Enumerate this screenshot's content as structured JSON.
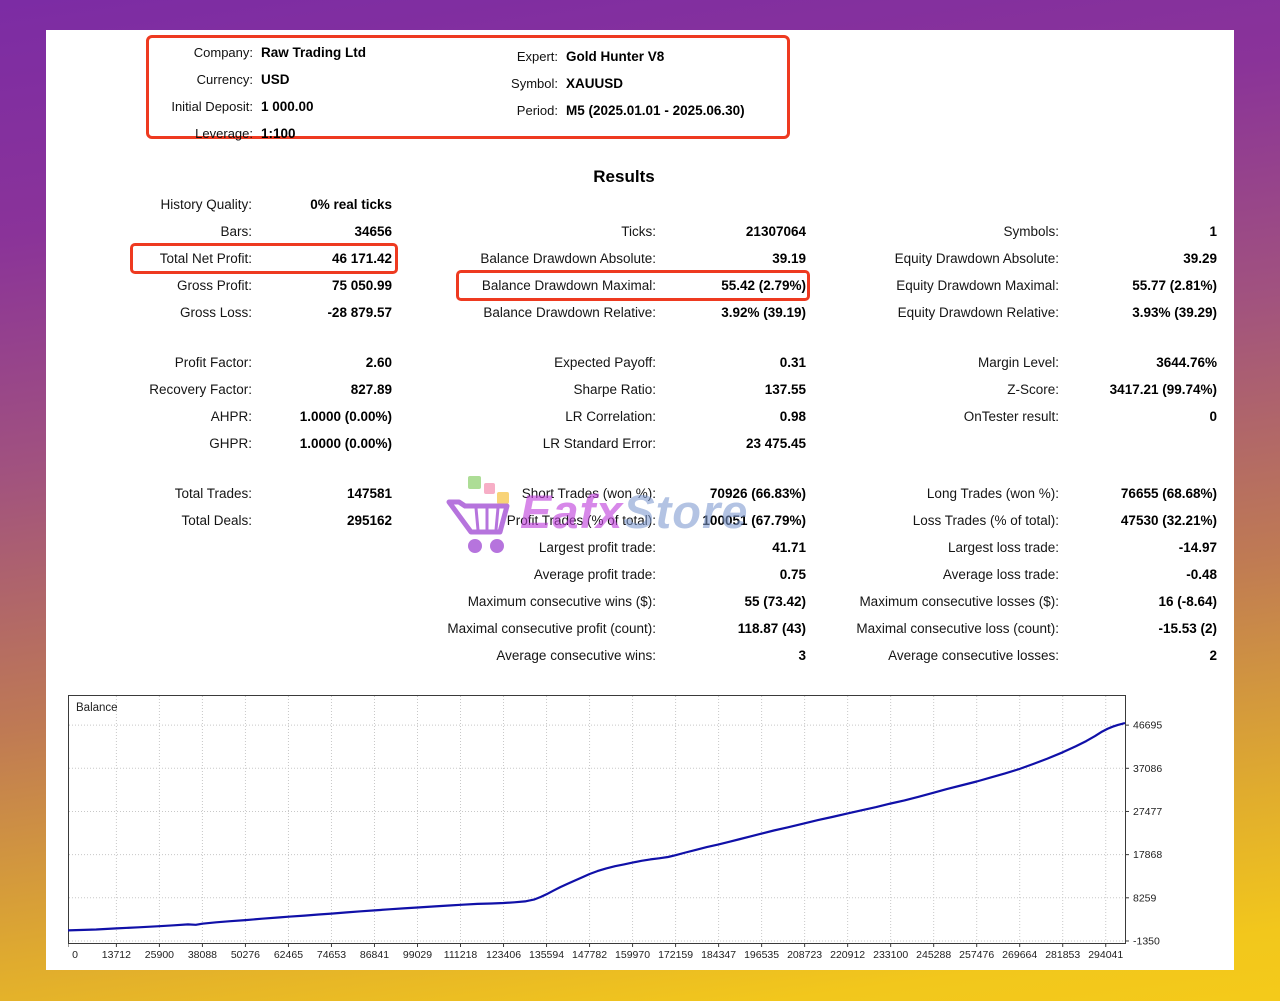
{
  "header": {
    "left": [
      {
        "label": "Company:",
        "value": "Raw Trading Ltd"
      },
      {
        "label": "Currency:",
        "value": "USD"
      },
      {
        "label": "Initial Deposit:",
        "value": "1 000.00"
      },
      {
        "label": "Leverage:",
        "value": "1:100"
      }
    ],
    "right": [
      {
        "label": "Expert:",
        "value": "Gold Hunter V8"
      },
      {
        "label": "Symbol:",
        "value": "XAUUSD"
      },
      {
        "label": "Period:",
        "value": "M5 (2025.01.01 - 2025.06.30)"
      }
    ]
  },
  "results_title": "Results",
  "stats": {
    "col1": [
      {
        "label": "History Quality:",
        "value": "0% real ticks"
      },
      {
        "label": "Bars:",
        "value": "34656"
      },
      {
        "label": "Total Net Profit:",
        "value": "46 171.42",
        "boxed": true
      },
      {
        "label": "Gross Profit:",
        "value": "75 050.99"
      },
      {
        "label": "Gross Loss:",
        "value": "-28 879.57"
      },
      {
        "gap": true
      },
      {
        "label": "Profit Factor:",
        "value": "2.60"
      },
      {
        "label": "Recovery Factor:",
        "value": "827.89"
      },
      {
        "label": "AHPR:",
        "value": "1.0000 (0.00%)"
      },
      {
        "label": "GHPR:",
        "value": "1.0000 (0.00%)"
      },
      {
        "gap": true
      },
      {
        "label": "Total Trades:",
        "value": "147581"
      },
      {
        "label": "Total Deals:",
        "value": "295162"
      }
    ],
    "col2": [
      {
        "label": "",
        "value": ""
      },
      {
        "label": "Ticks:",
        "value": "21307064"
      },
      {
        "label": "Balance Drawdown Absolute:",
        "value": "39.19"
      },
      {
        "label": "Balance Drawdown Maximal:",
        "value": "55.42 (2.79%)",
        "boxed": true
      },
      {
        "label": "Balance Drawdown Relative:",
        "value": "3.92% (39.19)"
      },
      {
        "gap": true
      },
      {
        "label": "Expected Payoff:",
        "value": "0.31"
      },
      {
        "label": "Sharpe Ratio:",
        "value": "137.55"
      },
      {
        "label": "LR Correlation:",
        "value": "0.98"
      },
      {
        "label": "LR Standard Error:",
        "value": "23 475.45"
      },
      {
        "gap": true
      },
      {
        "label": "Short Trades (won %):",
        "value": "70926 (66.83%)"
      },
      {
        "label": "Profit Trades (% of total):",
        "value": "100051 (67.79%)"
      },
      {
        "label": "Largest profit trade:",
        "value": "41.71"
      },
      {
        "label": "Average profit trade:",
        "value": "0.75"
      },
      {
        "label": "Maximum consecutive wins ($):",
        "value": "55 (73.42)"
      },
      {
        "label": "Maximal consecutive profit (count):",
        "value": "118.87 (43)"
      },
      {
        "label": "Average consecutive wins:",
        "value": "3"
      }
    ],
    "col3": [
      {
        "label": "",
        "value": ""
      },
      {
        "label": "Symbols:",
        "value": "1"
      },
      {
        "label": "Equity Drawdown Absolute:",
        "value": "39.29"
      },
      {
        "label": "Equity Drawdown Maximal:",
        "value": "55.77 (2.81%)"
      },
      {
        "label": "Equity Drawdown Relative:",
        "value": "3.93% (39.29)"
      },
      {
        "gap": true
      },
      {
        "label": "Margin Level:",
        "value": "3644.76%"
      },
      {
        "label": "Z-Score:",
        "value": "3417.21 (99.74%)"
      },
      {
        "label": "OnTester result:",
        "value": "0"
      },
      {
        "label": "",
        "value": ""
      },
      {
        "gap": true
      },
      {
        "label": "Long Trades (won %):",
        "value": "76655 (68.68%)"
      },
      {
        "label": "Loss Trades (% of total):",
        "value": "47530 (32.21%)"
      },
      {
        "label": "Largest loss trade:",
        "value": "-14.97"
      },
      {
        "label": "Average loss trade:",
        "value": "-0.48"
      },
      {
        "label": "Maximum consecutive losses ($):",
        "value": "16 (-8.64)"
      },
      {
        "label": "Maximal consecutive loss (count):",
        "value": "-15.53 (2)"
      },
      {
        "label": "Average consecutive losses:",
        "value": "2"
      }
    ]
  },
  "watermark": {
    "icon": "shopping-cart-icon",
    "text_primary": "Eafx",
    "text_secondary": "Store"
  },
  "colors": {
    "highlight_box": "#ee3a20",
    "balance_line": "#1010a8",
    "grid": "#c8c8c8",
    "axis": "#3a3a3a",
    "frame_top": "#7c2ca4",
    "frame_bottom": "#f4ca1a"
  },
  "chart_data": {
    "type": "line",
    "title": "Balance",
    "legend_position": "top-left-inside",
    "grid": "dotted",
    "xlim": [
      0,
      299500
    ],
    "ylim": [
      -1800,
      53400
    ],
    "x_ticks": [
      0,
      13712,
      25900,
      38088,
      50276,
      62465,
      74653,
      86841,
      99029,
      111218,
      123406,
      135594,
      147782,
      159970,
      172159,
      184347,
      196535,
      208723,
      220912,
      233100,
      245288,
      257476,
      269664,
      281853,
      294041
    ],
    "y_ticks": [
      46695,
      37086,
      27477,
      17868,
      8259,
      -1350
    ],
    "series": [
      {
        "name": "Balance",
        "color": "#1010a8",
        "points": [
          [
            0,
            1000
          ],
          [
            8000,
            1200
          ],
          [
            13712,
            1450
          ],
          [
            20000,
            1700
          ],
          [
            25900,
            1950
          ],
          [
            30000,
            2150
          ],
          [
            34000,
            2350
          ],
          [
            36200,
            2250
          ],
          [
            38088,
            2500
          ],
          [
            42000,
            2800
          ],
          [
            46000,
            3050
          ],
          [
            50276,
            3300
          ],
          [
            55000,
            3600
          ],
          [
            60000,
            3900
          ],
          [
            62465,
            4050
          ],
          [
            67000,
            4300
          ],
          [
            71000,
            4550
          ],
          [
            74653,
            4750
          ],
          [
            79000,
            5000
          ],
          [
            83000,
            5250
          ],
          [
            86841,
            5450
          ],
          [
            91000,
            5700
          ],
          [
            95000,
            5900
          ],
          [
            99029,
            6100
          ],
          [
            104000,
            6350
          ],
          [
            108000,
            6550
          ],
          [
            111218,
            6700
          ],
          [
            116000,
            6900
          ],
          [
            120000,
            7000
          ],
          [
            123406,
            7100
          ],
          [
            126500,
            7250
          ],
          [
            129500,
            7450
          ],
          [
            132000,
            7850
          ],
          [
            134000,
            8450
          ],
          [
            135594,
            9050
          ],
          [
            137500,
            9850
          ],
          [
            139500,
            10650
          ],
          [
            141500,
            11350
          ],
          [
            143500,
            12050
          ],
          [
            145500,
            12750
          ],
          [
            147782,
            13550
          ],
          [
            150000,
            14200
          ],
          [
            152500,
            14800
          ],
          [
            155000,
            15300
          ],
          [
            157500,
            15700
          ],
          [
            159970,
            16100
          ],
          [
            162500,
            16500
          ],
          [
            165000,
            16800
          ],
          [
            167500,
            17050
          ],
          [
            170000,
            17350
          ],
          [
            172159,
            17750
          ],
          [
            175000,
            18350
          ],
          [
            178000,
            18950
          ],
          [
            181000,
            19550
          ],
          [
            184347,
            20150
          ],
          [
            187500,
            20750
          ],
          [
            190500,
            21350
          ],
          [
            193500,
            21950
          ],
          [
            196535,
            22550
          ],
          [
            200000,
            23250
          ],
          [
            204000,
            23950
          ],
          [
            208723,
            24850
          ],
          [
            212500,
            25550
          ],
          [
            216500,
            26250
          ],
          [
            220912,
            27050
          ],
          [
            225000,
            27750
          ],
          [
            229000,
            28450
          ],
          [
            233100,
            29250
          ],
          [
            237000,
            29950
          ],
          [
            241000,
            30750
          ],
          [
            245288,
            31650
          ],
          [
            249000,
            32450
          ],
          [
            253000,
            33250
          ],
          [
            257476,
            34150
          ],
          [
            261500,
            35050
          ],
          [
            265500,
            35950
          ],
          [
            269664,
            36950
          ],
          [
            273500,
            38050
          ],
          [
            277500,
            39250
          ],
          [
            281853,
            40650
          ],
          [
            285500,
            41950
          ],
          [
            288500,
            43150
          ],
          [
            291000,
            44250
          ],
          [
            293000,
            45250
          ],
          [
            294500,
            45850
          ],
          [
            296000,
            46350
          ],
          [
            297500,
            46750
          ],
          [
            298700,
            46980
          ],
          [
            299500,
            47171
          ]
        ]
      }
    ]
  }
}
